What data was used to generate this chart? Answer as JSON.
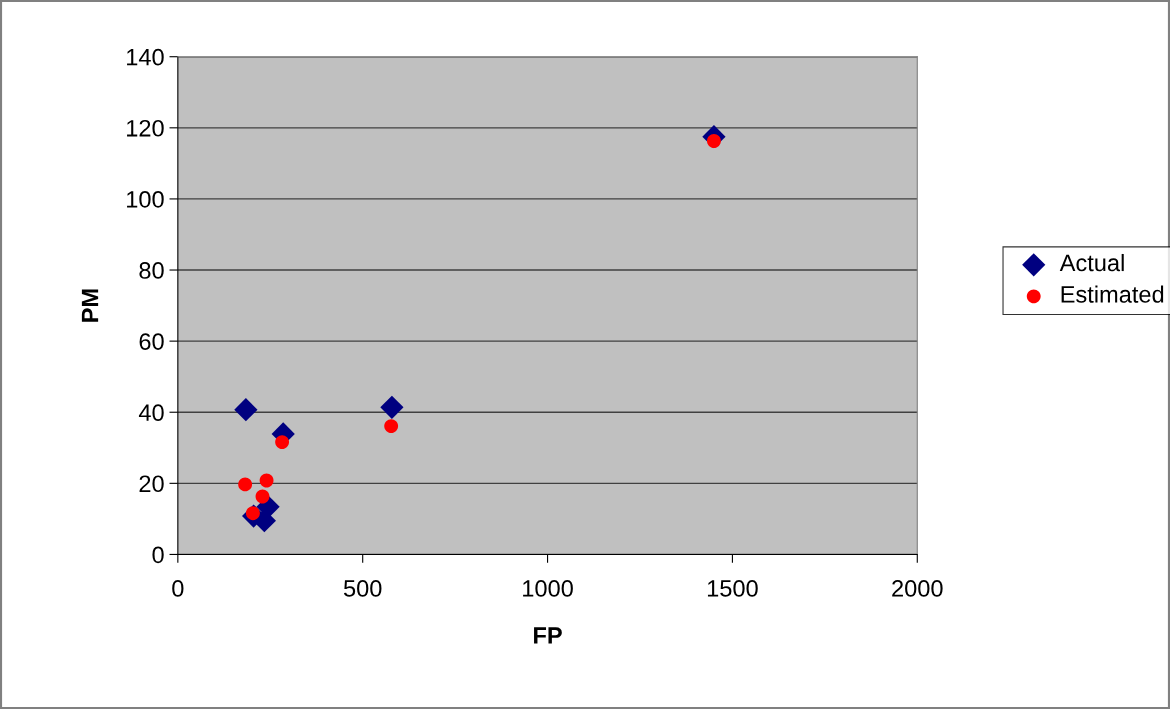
{
  "chart_data": {
    "type": "scatter",
    "xlabel": "FP",
    "ylabel": "PM",
    "xlim": [
      0,
      2000
    ],
    "ylim": [
      0,
      140
    ],
    "xticks": [
      0,
      500,
      1000,
      1500,
      2000
    ],
    "yticks": [
      0,
      20,
      40,
      60,
      80,
      100,
      120,
      140
    ],
    "grid": "y",
    "legend": "right",
    "series": [
      {
        "name": "Actual",
        "color": "#000080",
        "marker": "diamond",
        "x": [
          184,
          285,
          579,
          244,
          234,
          205,
          1450
        ],
        "values": [
          40.7,
          33.9,
          41.4,
          13.4,
          9.5,
          10.8,
          117.5
        ]
      },
      {
        "name": "Estimated",
        "color": "#ff0000",
        "marker": "circle",
        "x": [
          182,
          240,
          229,
          203,
          282,
          577,
          1450
        ],
        "values": [
          19.7,
          20.8,
          16.3,
          11.6,
          31.6,
          36.1,
          116.3
        ]
      }
    ]
  }
}
